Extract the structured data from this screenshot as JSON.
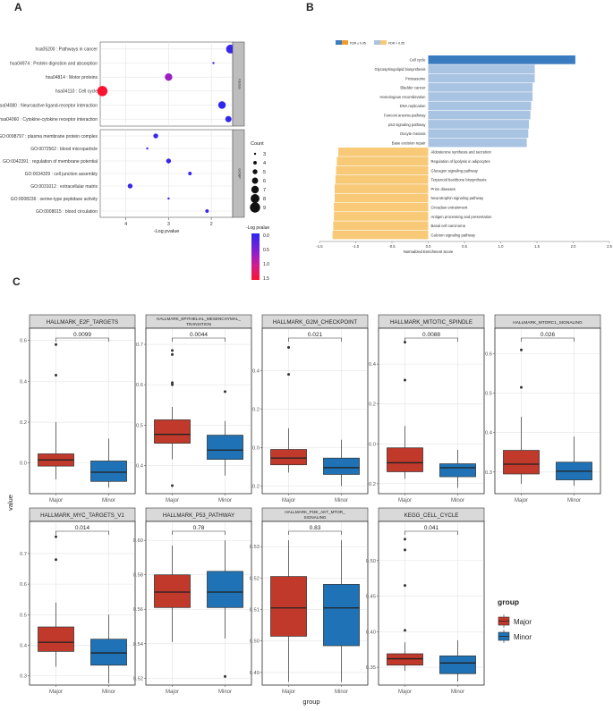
{
  "colors": {
    "major": "#C0392B",
    "minor": "#1F72B5",
    "fdr_low_a": "#3A7CC0",
    "fdr_low_b": "#F29B2C",
    "fdr_high_a": "#A9C3E3",
    "fdr_high_b": "#F8C977",
    "strip": "#d9d9d9",
    "panel_border": "#333333",
    "grid": "#e3e3e3"
  },
  "chart_data": [
    {
      "panel": "A",
      "type": "scatter",
      "xlabel": "-Log pvalue",
      "xticks": [
        "4",
        "3",
        "2"
      ],
      "xlim": [
        4.6,
        1.5
      ],
      "groups": [
        {
          "strip": "KEGG",
          "terms": [
            {
              "label": "hsa05200 : Pathways in cancer",
              "x": 1.55,
              "count": 8,
              "logp": 0.1
            },
            {
              "label": "hsa04974 : Protein digestion and absorption",
              "x": 1.95,
              "count": 3,
              "logp": 0.2
            },
            {
              "label": "hsa04814 : Motor proteins",
              "x": 3.0,
              "count": 7,
              "logp": 0.7
            },
            {
              "label": "hsa04110 : Cell cycle",
              "x": 4.55,
              "count": 9,
              "logp": 1.5
            },
            {
              "label": "hsa04080 : Neuroactive ligand-receptor interaction",
              "x": 1.75,
              "count": 7,
              "logp": 0.05
            },
            {
              "label": "hsa04060 : Cytokine-cytokine receptor interaction",
              "x": 1.6,
              "count": 6,
              "logp": 0.05
            }
          ]
        },
        {
          "strip": "GOBP",
          "terms": [
            {
              "label": "GO:0098797 : plasma membrane protein complex",
              "x": 3.3,
              "count": 5,
              "logp": 0.1
            },
            {
              "label": "GO:0072562 : blood microparticle",
              "x": 3.5,
              "count": 3,
              "logp": 0.1
            },
            {
              "label": "GO:0042391 : regulation of membrane potential",
              "x": 3.0,
              "count": 5,
              "logp": 0.1
            },
            {
              "label": "GO:0034329 : cell junction assembly",
              "x": 2.5,
              "count": 4,
              "logp": 0.1
            },
            {
              "label": "GO:0031012 : extracellular matrix",
              "x": 3.9,
              "count": 5,
              "logp": 0.1
            },
            {
              "label": "GO:0008236 : serine-type peptidase activity",
              "x": 3.0,
              "count": 3,
              "logp": 0.1
            },
            {
              "label": "GO:0008015 : blood circulation",
              "x": 2.1,
              "count": 4,
              "logp": 0.1
            }
          ]
        }
      ],
      "legend": {
        "count_title": "Count",
        "counts": [
          3,
          4,
          5,
          6,
          7,
          8,
          9
        ],
        "color_title": "-Log pvalue",
        "color_ticks": [
          "0.0",
          "0.5",
          "1.0",
          "1.5"
        ]
      }
    },
    {
      "panel": "B",
      "type": "bar",
      "xlabel": "Normalized Enrichment Score",
      "xlim": [
        -1.5,
        2.5
      ],
      "xticks": [
        "-1.5",
        "-1.0",
        "-0.5",
        "0.0",
        "0.5",
        "1.0",
        "1.5",
        "2.0",
        "2.5"
      ],
      "legend": [
        "FDR ≤ 0.05",
        "FDR > 0.05"
      ],
      "categories": [
        "Cell cycle",
        "Glycosphingolipid biosynthesis",
        "Proteasome",
        "Bladder cancer",
        "Homologous recombination",
        "DNA replication",
        "Fanconi anemia pathway",
        "p53 signaling pathway",
        "Oocyte meiosis",
        "Base excision repair",
        "Aldosterone synthesis and secretion",
        "Regulation of lipolysis in adipocytes",
        "Glucagon signaling pathway",
        "Terpenoid backbone biosynthesis",
        "Prion diseases",
        "Neurotrophin signaling pathway",
        "Circadian entrainment",
        "Antigen processing and presentation",
        "Basal cell carcinoma",
        "Calcium signaling pathway"
      ],
      "values": [
        2.03,
        1.47,
        1.47,
        1.44,
        1.44,
        1.42,
        1.41,
        1.39,
        1.38,
        1.36,
        -1.24,
        -1.26,
        -1.27,
        -1.28,
        -1.29,
        -1.29,
        -1.3,
        -1.3,
        -1.31,
        -1.32
      ],
      "significant": [
        true,
        false,
        false,
        false,
        false,
        false,
        false,
        false,
        false,
        false,
        false,
        false,
        false,
        false,
        false,
        false,
        false,
        false,
        false,
        false
      ]
    },
    {
      "panel": "C",
      "type": "box",
      "ylabel": "value",
      "xlabel": "group",
      "groups": [
        "Major",
        "Minor"
      ],
      "legend_title": "group",
      "facets": [
        {
          "title": "HALLMARK_E2F_TARGETS",
          "p": "0.0099",
          "ylim": [
            -0.15,
            0.66
          ],
          "yticks": [
            0.0,
            0.2,
            0.4,
            0.6
          ],
          "ytick_labels": [
            "0.0",
            "0.2",
            "0.4",
            "0.6"
          ],
          "boxes": [
            {
              "min": -0.08,
              "q1": -0.015,
              "median": 0.015,
              "q3": 0.045,
              "max": 0.2,
              "outliers": [
                0.43,
                0.58
              ]
            },
            {
              "min": -0.12,
              "q1": -0.09,
              "median": -0.045,
              "q3": 0.01,
              "max": 0.12,
              "outliers": []
            }
          ]
        },
        {
          "title": "HALLMARK_EPITHELIAL_MESENCHYMAL_TRANSITION",
          "p": "0.0044",
          "ylim": [
            0.33,
            0.74
          ],
          "yticks": [
            0.4,
            0.5,
            0.6,
            0.7
          ],
          "ytick_labels": [
            "0.4",
            "0.5",
            "0.6",
            "0.7"
          ],
          "boxes": [
            {
              "min": 0.415,
              "q1": 0.455,
              "median": 0.477,
              "q3": 0.513,
              "max": 0.545,
              "outliers": [
                0.35,
                0.6,
                0.605,
                0.675,
                0.685
              ]
            },
            {
              "min": 0.375,
              "q1": 0.415,
              "median": 0.438,
              "q3": 0.475,
              "max": 0.51,
              "outliers": [
                0.583
              ]
            }
          ]
        },
        {
          "title": "HALLMARK_G2M_CHECKPOINT",
          "p": "0.021",
          "ylim": [
            -0.24,
            0.62
          ],
          "yticks": [
            -0.2,
            0.0,
            0.2,
            0.4
          ],
          "ytick_labels": [
            "-0.2",
            "0.0",
            "0.2",
            "0.4"
          ],
          "boxes": [
            {
              "min": -0.13,
              "q1": -0.09,
              "median": -0.055,
              "q3": -0.01,
              "max": 0.1,
              "outliers": [
                0.38,
                0.52
              ]
            },
            {
              "min": -0.2,
              "q1": -0.14,
              "median": -0.105,
              "q3": -0.055,
              "max": 0.04,
              "outliers": []
            }
          ]
        },
        {
          "title": "HALLMARK_MITOTIC_SPINDLE",
          "p": "0.0088",
          "ylim": [
            -0.25,
            0.58
          ],
          "yticks": [
            -0.2,
            0.0,
            0.2,
            0.4
          ],
          "ytick_labels": [
            "-0.2",
            "0.0",
            "0.2",
            "0.4"
          ],
          "boxes": [
            {
              "min": -0.175,
              "q1": -0.14,
              "median": -0.095,
              "q3": -0.02,
              "max": 0.09,
              "outliers": [
                0.32,
                0.51
              ]
            },
            {
              "min": -0.22,
              "q1": -0.165,
              "median": -0.12,
              "q3": -0.1,
              "max": -0.03,
              "outliers": []
            }
          ]
        },
        {
          "title": "HALLMARK_MTORC1_SIGNALING",
          "p": "0.026",
          "ylim": [
            0.245,
            0.665
          ],
          "yticks": [
            0.3,
            0.4,
            0.5,
            0.6
          ],
          "ytick_labels": [
            "0.3",
            "0.4",
            "0.5",
            "0.6"
          ],
          "boxes": [
            {
              "min": 0.27,
              "q1": 0.295,
              "median": 0.32,
              "q3": 0.355,
              "max": 0.44,
              "outliers": [
                0.515,
                0.61
              ]
            },
            {
              "min": 0.265,
              "q1": 0.28,
              "median": 0.302,
              "q3": 0.325,
              "max": 0.39,
              "outliers": []
            }
          ]
        },
        {
          "title": "HALLMARK_MYC_TARGETS_V1",
          "p": "0.014",
          "ylim": [
            0.27,
            0.805
          ],
          "yticks": [
            0.3,
            0.4,
            0.5,
            0.6,
            0.7
          ],
          "ytick_labels": [
            "0.3",
            "0.4",
            "0.5",
            "0.6",
            "0.7"
          ],
          "boxes": [
            {
              "min": 0.33,
              "q1": 0.38,
              "median": 0.41,
              "q3": 0.46,
              "max": 0.54,
              "outliers": [
                0.68,
                0.755
              ]
            },
            {
              "min": 0.275,
              "q1": 0.335,
              "median": 0.375,
              "q3": 0.42,
              "max": 0.5,
              "outliers": []
            }
          ]
        },
        {
          "title": "HALLMARK_P53_PATHWAY",
          "p": "0.78",
          "ylim": [
            0.516,
            0.611
          ],
          "yticks": [
            0.52,
            0.54,
            0.56,
            0.58,
            0.6
          ],
          "ytick_labels": [
            "0.52",
            "0.54",
            "0.56",
            "0.58",
            "0.60"
          ],
          "boxes": [
            {
              "min": 0.541,
              "q1": 0.561,
              "median": 0.57,
              "q3": 0.58,
              "max": 0.597,
              "outliers": []
            },
            {
              "min": 0.543,
              "q1": 0.561,
              "median": 0.57,
              "q3": 0.582,
              "max": 0.6,
              "outliers": [
                0.521
              ]
            }
          ]
        },
        {
          "title": "HALLMARK_PI3K_AKT_MTOR_SIGNALING",
          "p": "0.83",
          "ylim": [
            0.486,
            0.538
          ],
          "yticks": [
            0.49,
            0.5,
            0.51,
            0.52,
            0.53
          ],
          "ytick_labels": [
            "0.49",
            "0.50",
            "0.51",
            "0.52",
            "0.53"
          ],
          "boxes": [
            {
              "min": 0.487,
              "q1": 0.5015,
              "median": 0.5105,
              "q3": 0.5205,
              "max": 0.532,
              "outliers": []
            },
            {
              "min": 0.487,
              "q1": 0.4985,
              "median": 0.5105,
              "q3": 0.518,
              "max": 0.532,
              "outliers": []
            }
          ]
        },
        {
          "title": "KEGG_CELL_CYCLE",
          "p": "0.041",
          "ylim": [
            0.325,
            0.555
          ],
          "yticks": [
            0.35,
            0.4,
            0.45,
            0.5
          ],
          "ytick_labels": [
            "0.35",
            "0.40",
            "0.45",
            "0.50"
          ],
          "boxes": [
            {
              "min": 0.345,
              "q1": 0.353,
              "median": 0.362,
              "q3": 0.369,
              "max": 0.385,
              "outliers": [
                0.402,
                0.465,
                0.515,
                0.53
              ]
            },
            {
              "min": 0.33,
              "q1": 0.341,
              "median": 0.356,
              "q3": 0.366,
              "max": 0.388,
              "outliers": []
            }
          ]
        }
      ]
    }
  ],
  "panel_labels": [
    "A",
    "B",
    "C"
  ]
}
